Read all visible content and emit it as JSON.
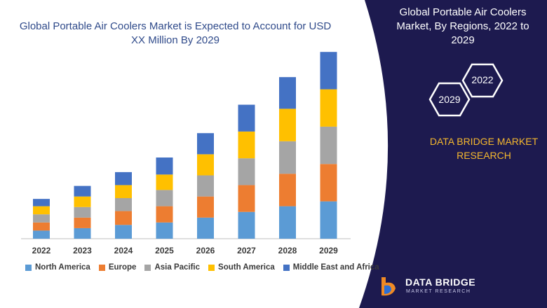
{
  "title": "Global Portable Air Coolers Market is Expected to Account for USD XX Million By 2029",
  "sidebar": {
    "title": "Global Portable Air Coolers Market, By Regions, 2022 to 2029",
    "hex_top": "2022",
    "hex_bottom": "2029",
    "brand_line": "DATA BRIDGE MARKET RESEARCH",
    "logo_name": "DATA BRIDGE",
    "logo_sub": "MARKET RESEARCH",
    "background_color": "#1d1a4f"
  },
  "colors": {
    "North America": "#5b9bd5",
    "Europe": "#ed7d31",
    "Asia Pacific": "#a5a5a5",
    "South America": "#ffc000",
    "Middle East and Africa": "#4472c4"
  },
  "chart_data": {
    "type": "bar",
    "stacked": true,
    "categories": [
      "2022",
      "2023",
      "2024",
      "2025",
      "2026",
      "2027",
      "2028",
      "2029"
    ],
    "series": [
      {
        "name": "North America",
        "values": [
          10,
          13,
          17,
          20,
          26,
          33,
          40,
          46
        ]
      },
      {
        "name": "Europe",
        "values": [
          10,
          13,
          17,
          20,
          26,
          33,
          40,
          46
        ]
      },
      {
        "name": "Asia Pacific",
        "values": [
          10,
          13,
          16,
          20,
          26,
          33,
          40,
          46
        ]
      },
      {
        "name": "South America",
        "values": [
          10,
          13,
          16,
          19,
          26,
          33,
          40,
          46
        ]
      },
      {
        "name": "Middle East and Africa",
        "values": [
          9,
          13,
          16,
          21,
          26,
          33,
          39,
          46
        ]
      }
    ],
    "ylim": [
      0,
      250
    ],
    "grid": false,
    "legend": "bottom"
  }
}
